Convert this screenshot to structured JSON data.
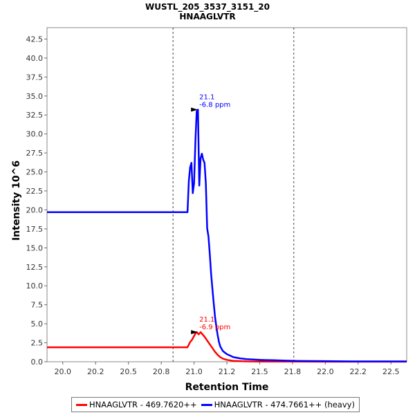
{
  "chart_data": {
    "type": "line",
    "title": "WUSTL_205_3537_3151_20",
    "subtitle": "HNAAGLVTR",
    "xlabel": "Retention Time",
    "ylabel": "Intensity 10^6",
    "xlim": [
      19.88,
      22.62
    ],
    "ylim": [
      0,
      44
    ],
    "x_ticks": [
      "20.0",
      "20.2",
      "20.5",
      "20.8",
      "21.0",
      "21.2",
      "21.5",
      "21.8",
      "22.0",
      "22.2",
      "22.5"
    ],
    "x_tick_values": [
      20.0,
      20.25,
      20.5,
      20.75,
      21.0,
      21.25,
      21.5,
      21.75,
      22.0,
      22.25,
      22.5
    ],
    "y_ticks": [
      "0.0",
      "2.5",
      "5.0",
      "7.5",
      "10.0",
      "12.5",
      "15.0",
      "17.5",
      "20.0",
      "22.5",
      "25.0",
      "27.5",
      "30.0",
      "32.5",
      "35.0",
      "37.5",
      "40.0",
      "42.5"
    ],
    "y_tick_values": [
      0,
      2.5,
      5,
      7.5,
      10,
      12.5,
      15,
      17.5,
      20,
      22.5,
      25,
      27.5,
      30,
      32.5,
      35,
      37.5,
      40,
      42.5
    ],
    "integration_bounds": [
      20.84,
      21.76
    ],
    "legend_position": "bottom",
    "series": [
      {
        "name": "HNAAGLVTR - 469.7620++",
        "color": "#ff0000",
        "x": [
          19.88,
          20.95,
          20.97,
          20.985,
          21.0,
          21.01,
          21.02,
          21.035,
          21.05,
          21.065,
          21.08,
          21.1,
          21.12,
          21.14,
          21.16,
          21.18,
          21.2,
          21.22,
          21.25,
          21.3,
          21.35,
          21.4,
          21.5,
          21.6,
          21.8,
          22.0,
          22.62
        ],
        "y": [
          1.9,
          1.9,
          2.6,
          2.9,
          3.4,
          3.7,
          3.9,
          3.6,
          3.9,
          3.6,
          3.3,
          2.8,
          2.3,
          1.8,
          1.3,
          0.9,
          0.6,
          0.4,
          0.25,
          0.12,
          0.08,
          0.05,
          0.03,
          0.02,
          0.02,
          0.01,
          0.01
        ]
      },
      {
        "name": "HNAAGLVTR - 474.7661++ (heavy)",
        "color": "#0000ff",
        "x": [
          19.88,
          20.95,
          20.96,
          20.97,
          20.98,
          20.99,
          21.0,
          21.01,
          21.02,
          21.03,
          21.04,
          21.05,
          21.06,
          21.07,
          21.08,
          21.09,
          21.1,
          21.11,
          21.12,
          21.13,
          21.14,
          21.15,
          21.16,
          21.17,
          21.18,
          21.19,
          21.2,
          21.22,
          21.25,
          21.3,
          21.35,
          21.4,
          21.45,
          21.5,
          21.6,
          21.7,
          21.8,
          22.0,
          22.2,
          22.62
        ],
        "y": [
          19.7,
          19.7,
          23.8,
          25.6,
          26.2,
          22.2,
          23.5,
          29.0,
          33.0,
          33.2,
          23.2,
          26.8,
          27.4,
          26.6,
          26.2,
          23.5,
          17.6,
          16.5,
          14.2,
          11.6,
          9.6,
          7.7,
          5.9,
          4.6,
          3.5,
          2.6,
          2.0,
          1.4,
          1.0,
          0.6,
          0.45,
          0.35,
          0.3,
          0.25,
          0.2,
          0.15,
          0.1,
          0.08,
          0.05,
          0.05
        ]
      }
    ],
    "annotations": [
      {
        "series": 0,
        "x": 21.04,
        "y": 3.9,
        "time": "21.1",
        "ppm": "-6.9 ppm",
        "color": "#ff0000"
      },
      {
        "series": 1,
        "x": 21.04,
        "y": 33.2,
        "time": "21.1",
        "ppm": "-6.8 ppm",
        "color": "#0000ff"
      }
    ]
  }
}
